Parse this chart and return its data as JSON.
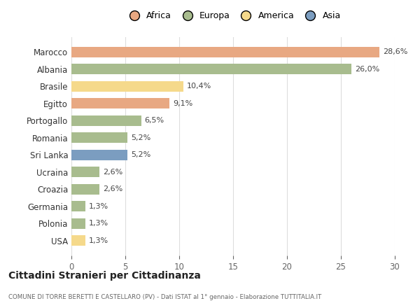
{
  "categories": [
    "Marocco",
    "Albania",
    "Brasile",
    "Egitto",
    "Portogallo",
    "Romania",
    "Sri Lanka",
    "Ucraina",
    "Croazia",
    "Germania",
    "Polonia",
    "USA"
  ],
  "values": [
    28.6,
    26.0,
    10.4,
    9.1,
    6.5,
    5.2,
    5.2,
    2.6,
    2.6,
    1.3,
    1.3,
    1.3
  ],
  "labels": [
    "28,6%",
    "26,0%",
    "10,4%",
    "9,1%",
    "6,5%",
    "5,2%",
    "5,2%",
    "2,6%",
    "2,6%",
    "1,3%",
    "1,3%",
    "1,3%"
  ],
  "colors": [
    "#E8A882",
    "#A8BC8E",
    "#F5D98B",
    "#E8A882",
    "#A8BC8E",
    "#A8BC8E",
    "#7B9DC0",
    "#A8BC8E",
    "#A8BC8E",
    "#A8BC8E",
    "#A8BC8E",
    "#F5D98B"
  ],
  "legend_labels": [
    "Africa",
    "Europa",
    "America",
    "Asia"
  ],
  "legend_colors": [
    "#E8A882",
    "#A8BC8E",
    "#F5D98B",
    "#7B9DC0"
  ],
  "title": "Cittadini Stranieri per Cittadinanza",
  "subtitle": "COMUNE DI TORRE BERETTI E CASTELLARO (PV) - Dati ISTAT al 1° gennaio - Elaborazione TUTTITALIA.IT",
  "xlim": [
    0,
    30
  ],
  "xticks": [
    0,
    5,
    10,
    15,
    20,
    25,
    30
  ],
  "bg_color": "#ffffff",
  "grid_color": "#dddddd"
}
